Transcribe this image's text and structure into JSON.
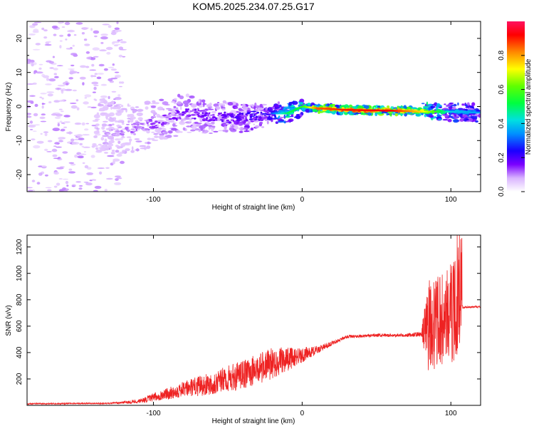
{
  "title": "KOM5.2025.234.07.25.G17",
  "chart_data": [
    {
      "type": "heatmap",
      "title": "KOM5.2025.234.07.25.G17",
      "xlabel": "Height of straight line (km)",
      "ylabel": "Frequency (Hz)",
      "xlim": [
        -185,
        120
      ],
      "ylim": [
        -25,
        25
      ],
      "x_ticks": [
        -100,
        0,
        100
      ],
      "y_ticks": [
        -20,
        -10,
        0,
        10,
        20
      ],
      "colorbar": {
        "label": "Normalized spectral amplitude",
        "range": [
          0,
          1
        ],
        "ticks": [
          0.0,
          0.2,
          0.4,
          0.6,
          0.8
        ]
      },
      "ridge": {
        "x": [
          -185,
          -140,
          -120,
          -100,
          -80,
          -60,
          -40,
          -20,
          -10,
          0,
          10,
          30,
          60,
          80,
          100,
          120
        ],
        "freq": [
          -8,
          -5,
          -7,
          -5,
          -2,
          -3,
          -3.5,
          -2,
          -2,
          0,
          -0.5,
          -1,
          -1.2,
          -1.5,
          -1.5,
          -1.8
        ],
        "amplitude": [
          0.05,
          0.08,
          0.12,
          0.15,
          0.18,
          0.18,
          0.22,
          0.3,
          0.5,
          0.55,
          0.85,
          0.9,
          0.92,
          0.75,
          0.4,
          0.35
        ]
      }
    },
    {
      "type": "line",
      "xlabel": "Height of straight line (km)",
      "ylabel": "SNR (v/v)",
      "xlim": [
        -185,
        120
      ],
      "ylim": [
        0,
        1290
      ],
      "x_ticks": [
        -100,
        0,
        100
      ],
      "y_ticks": [
        200,
        400,
        600,
        800,
        1000,
        1200
      ],
      "series": [
        {
          "name": "SNR",
          "color": "#ee2222",
          "envelope_x": [
            -185,
            -130,
            -110,
            -100,
            -80,
            -60,
            -40,
            -20,
            0,
            10,
            20,
            30,
            50,
            70,
            80,
            85,
            90,
            95,
            100,
            105,
            108,
            110,
            120
          ],
          "envelope_y": [
            12,
            15,
            30,
            60,
            120,
            170,
            230,
            320,
            380,
            420,
            470,
            520,
            530,
            530,
            540,
            600,
            620,
            650,
            700,
            720,
            740,
            745,
            745
          ],
          "noise_amplitude": [
            5,
            5,
            15,
            30,
            60,
            90,
            110,
            120,
            60,
            30,
            15,
            12,
            12,
            12,
            20,
            350,
            350,
            350,
            380,
            400,
            8,
            8,
            8
          ]
        }
      ]
    }
  ]
}
